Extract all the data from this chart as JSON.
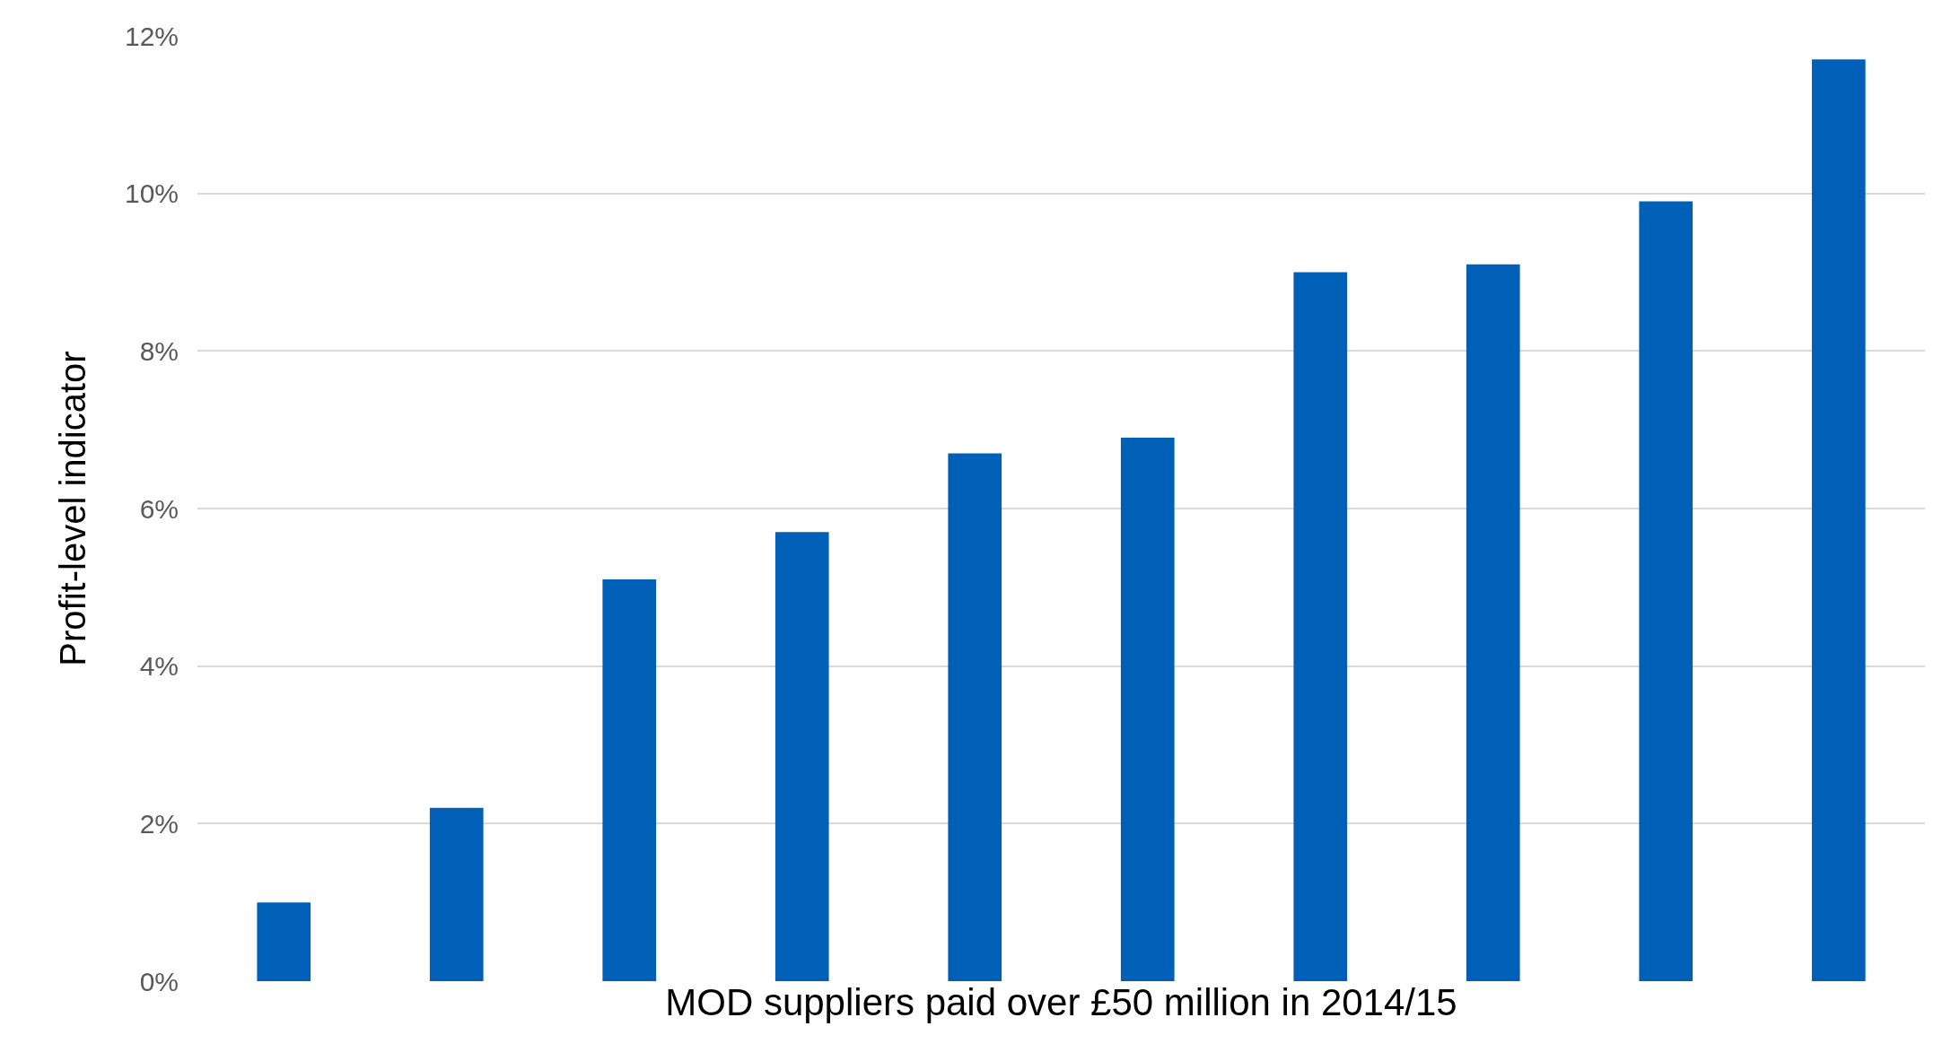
{
  "chart_data": {
    "type": "bar",
    "xlabel": "MOD suppliers paid over £50 million in 2014/15",
    "ylabel": "Profit-level indicator",
    "categories": [
      null,
      null,
      null,
      null,
      null,
      null,
      null,
      null,
      null,
      null
    ],
    "values": [
      1.0,
      2.2,
      5.1,
      5.7,
      6.7,
      6.9,
      9.0,
      9.1,
      9.9,
      11.7
    ],
    "color": "#0060b8",
    "ylim": [
      0,
      12
    ],
    "yticks": [
      {
        "value": 0,
        "label": "0%"
      },
      {
        "value": 2,
        "label": "2%"
      },
      {
        "value": 4,
        "label": "4%"
      },
      {
        "value": 6,
        "label": "6%"
      },
      {
        "value": 8,
        "label": "8%"
      },
      {
        "value": 10,
        "label": "10%"
      },
      {
        "value": 12,
        "label": "12%"
      }
    ],
    "grid": "y"
  }
}
